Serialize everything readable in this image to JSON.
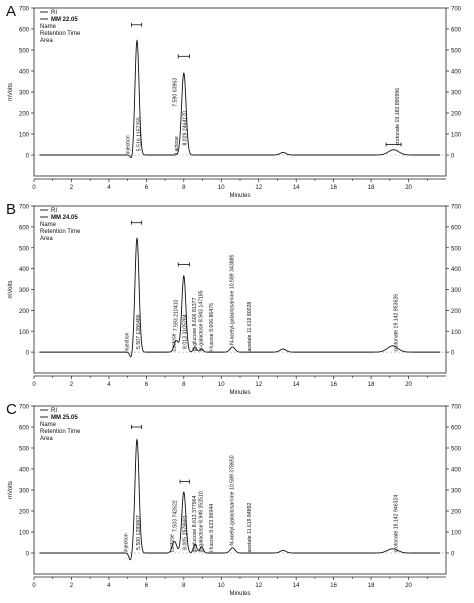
{
  "chart_data": [
    {
      "type": "line",
      "panel_letter": "A",
      "legend": {
        "series": "RI",
        "sample": "MM 22.05",
        "lines": [
          "Name",
          "Retention Time",
          "Area"
        ]
      },
      "xlabel": "Minutes",
      "ylabel": "mVolts",
      "xlim": [
        0,
        22
      ],
      "ylim": [
        -100,
        700
      ],
      "xticks": [
        "0",
        "2",
        "4",
        "6",
        "8",
        "10",
        "12",
        "14",
        "16",
        "18",
        "20"
      ],
      "yticks": [
        "0",
        "100",
        "200",
        "300",
        "400",
        "500",
        "600",
        "700"
      ],
      "yticks_right": [
        "0",
        "100",
        "200",
        "300",
        "400",
        "500",
        "600",
        "700"
      ],
      "peaks": [
        {
          "rt": 5.5,
          "height": 545,
          "width": 0.11
        },
        {
          "rt": 8.0,
          "height": 390,
          "width": 0.12
        },
        {
          "rt": 13.3,
          "height": 12,
          "width": 0.16
        },
        {
          "rt": 19.2,
          "height": 25,
          "width": 0.28
        }
      ],
      "dip": {
        "rt": 5.25,
        "depth": -30
      },
      "peak_labels": [
        {
          "x": 5.1,
          "y": 3,
          "text": "injection"
        },
        {
          "x": 5.7,
          "y": 18,
          "text": "5.516  1157255"
        },
        {
          "x": 7.7,
          "y": 3,
          "text": "Lactose"
        },
        {
          "x": 8.15,
          "y": 45,
          "text": "8.029  2464170"
        },
        {
          "x": 7.6,
          "y": 230,
          "text": "7.590  63963"
        },
        {
          "x": 19.5,
          "y": 45,
          "text": "crotonate  19.182  890996"
        }
      ],
      "brackets": [
        {
          "x1": 5.2,
          "x2": 5.75,
          "y": 620
        },
        {
          "x1": 7.7,
          "x2": 8.3,
          "y": 470
        },
        {
          "x1": 18.8,
          "x2": 19.6,
          "y": 50
        }
      ]
    },
    {
      "type": "line",
      "panel_letter": "B",
      "legend": {
        "series": "RI",
        "sample": "MM 24.05",
        "lines": [
          "Name",
          "Retention Time",
          "Area"
        ]
      },
      "xlabel": "Minutes",
      "ylabel": "mVolts",
      "xlim": [
        0,
        22
      ],
      "ylim": [
        -100,
        700
      ],
      "xticks": [
        "0",
        "2",
        "4",
        "6",
        "8",
        "10",
        "12",
        "14",
        "16",
        "18",
        "20"
      ],
      "yticks": [
        "0",
        "100",
        "200",
        "300",
        "400",
        "500",
        "600",
        "700"
      ],
      "yticks_right": [
        "0",
        "100",
        "200",
        "300",
        "400",
        "500",
        "600",
        "700"
      ],
      "peaks": [
        {
          "rt": 5.5,
          "height": 545,
          "width": 0.11
        },
        {
          "rt": 7.6,
          "height": 55,
          "width": 0.12
        },
        {
          "rt": 8.0,
          "height": 365,
          "width": 0.11
        },
        {
          "rt": 8.6,
          "height": 25,
          "width": 0.09
        },
        {
          "rt": 8.95,
          "height": 15,
          "width": 0.09
        },
        {
          "rt": 10.6,
          "height": 25,
          "width": 0.13
        },
        {
          "rt": 13.3,
          "height": 15,
          "width": 0.16
        },
        {
          "rt": 19.15,
          "height": 30,
          "width": 0.28
        }
      ],
      "dip": {
        "rt": 5.2,
        "depth": -30
      },
      "peak_labels": [
        {
          "x": 5.05,
          "y": 3,
          "text": "injection"
        },
        {
          "x": 5.65,
          "y": 15,
          "text": "5.507  1286486"
        },
        {
          "x": 7.55,
          "y": 3,
          "text": "Lactose"
        },
        {
          "x": 8.15,
          "y": 15,
          "text": "8.013  3105284"
        },
        {
          "x": 7.65,
          "y": 100,
          "text": "7.593  210410"
        },
        {
          "x": 8.65,
          "y": 3,
          "text": "gl-glucose  8.606  81377"
        },
        {
          "x": 9.0,
          "y": 3,
          "text": "gl-galactose  8.943  147185"
        },
        {
          "x": 9.55,
          "y": 3,
          "text": "l-fucose  9.606  86476"
        },
        {
          "x": 10.65,
          "y": 35,
          "text": "N-acetyl-galactosamine  10.589  343885"
        },
        {
          "x": 11.6,
          "y": 3,
          "text": "acetate  11.619  80028"
        },
        {
          "x": 19.4,
          "y": 3,
          "text": "crotonate  19.142  853626"
        }
      ],
      "brackets": [
        {
          "x1": 5.2,
          "x2": 5.75,
          "y": 620
        },
        {
          "x1": 7.7,
          "x2": 8.3,
          "y": 420
        }
      ]
    },
    {
      "type": "line",
      "panel_letter": "C",
      "legend": {
        "series": "RI",
        "sample": "MM 25.05",
        "lines": [
          "Name",
          "Retention Time",
          "Area"
        ]
      },
      "xlabel": "Minutes",
      "ylabel": "mVolts",
      "xlim": [
        0,
        22
      ],
      "ylim": [
        -100,
        700
      ],
      "xticks": [
        "0",
        "2",
        "4",
        "6",
        "8",
        "10",
        "12",
        "14",
        "16",
        "18",
        "20"
      ],
      "yticks": [
        "0",
        "100",
        "200",
        "300",
        "400",
        "500",
        "600",
        "700"
      ],
      "yticks_right": [
        "0",
        "100",
        "200",
        "300",
        "400",
        "500",
        "600",
        "700"
      ],
      "peaks": [
        {
          "rt": 5.5,
          "height": 540,
          "width": 0.11
        },
        {
          "rt": 7.5,
          "height": 55,
          "width": 0.12
        },
        {
          "rt": 8.0,
          "height": 290,
          "width": 0.11
        },
        {
          "rt": 8.6,
          "height": 40,
          "width": 0.09
        },
        {
          "rt": 8.95,
          "height": 30,
          "width": 0.09
        },
        {
          "rt": 10.6,
          "height": 25,
          "width": 0.13
        },
        {
          "rt": 13.3,
          "height": 12,
          "width": 0.16
        },
        {
          "rt": 19.15,
          "height": 20,
          "width": 0.28
        }
      ],
      "dip": {
        "rt": 5.15,
        "depth": -35
      },
      "peak_labels": [
        {
          "x": 5.0,
          "y": 3,
          "text": "injection"
        },
        {
          "x": 5.65,
          "y": 15,
          "text": "5.500  1289807"
        },
        {
          "x": 7.45,
          "y": 3,
          "text": "Lactose"
        },
        {
          "x": 8.15,
          "y": 15,
          "text": "8.005  2978681"
        },
        {
          "x": 7.6,
          "y": 100,
          "text": "7.503  742622"
        },
        {
          "x": 8.65,
          "y": 3,
          "text": "gl-glucose  8.613  377964"
        },
        {
          "x": 9.0,
          "y": 3,
          "text": "gl-galactose  8.949  352510"
        },
        {
          "x": 9.55,
          "y": 3,
          "text": "l-fucose  9.623  96944"
        },
        {
          "x": 10.65,
          "y": 35,
          "text": "N-acetyl-galactosamine  10.589  378650"
        },
        {
          "x": 11.6,
          "y": 3,
          "text": "acetate  11.619  84892"
        },
        {
          "x": 19.4,
          "y": 3,
          "text": "crotonate  19.142  946324"
        }
      ],
      "brackets": [
        {
          "x1": 5.2,
          "x2": 5.75,
          "y": 600
        },
        {
          "x1": 7.8,
          "x2": 8.3,
          "y": 340
        }
      ]
    }
  ]
}
